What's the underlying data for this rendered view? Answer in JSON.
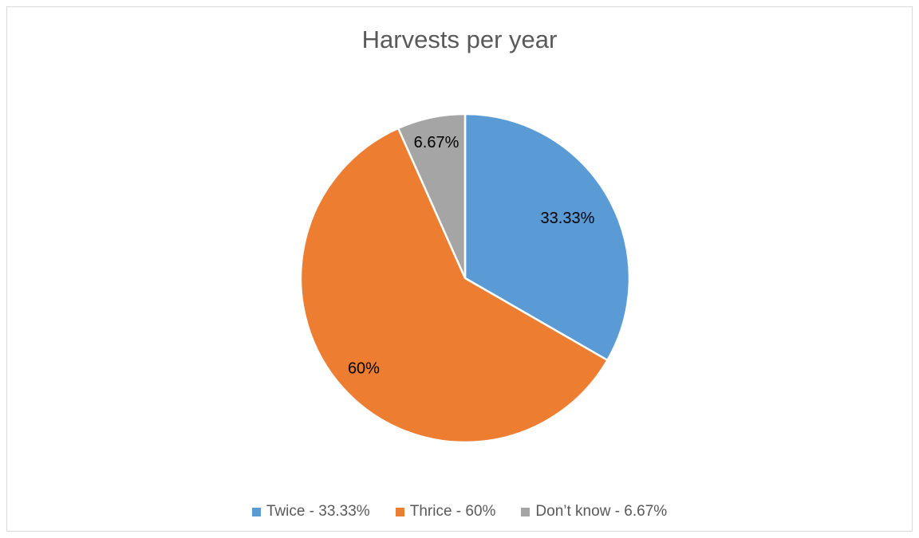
{
  "chart_data": {
    "type": "pie",
    "title": "Harvests per year",
    "slices": [
      {
        "label": "Twice",
        "value": 33.33,
        "data_label": "33.33%",
        "legend_label": "Twice - 33.33%",
        "color": "#5b9bd5"
      },
      {
        "label": "Thrice",
        "value": 60,
        "data_label": "60%",
        "legend_label": "Thrice - 60%",
        "color": "#ed7d31"
      },
      {
        "label": "Don’t know",
        "value": 6.67,
        "data_label": "6.67%",
        "legend_label": "Don’t know -  6.67%",
        "color": "#a5a5a5"
      }
    ],
    "legend_position": "bottom",
    "start_angle": "12 o'clock",
    "direction": "clockwise"
  }
}
